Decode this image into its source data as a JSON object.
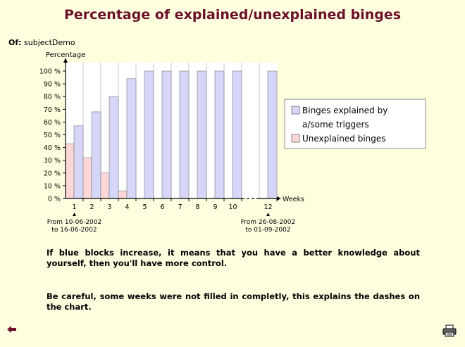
{
  "page": {
    "title": "Percentage of explained/unexplained binges",
    "subject_label": "Of:",
    "subject_value": "subjectDemo",
    "notes": [
      "If blue blocks increase, it means that you have a better knowledge about yourself, then you'll have more control.",
      "Be careful, some weeks were not filled in completly, this explains the dashes on the chart."
    ],
    "icons": {
      "back": "back-arrow-icon",
      "print": "printer-icon"
    }
  },
  "chart_data": {
    "type": "bar",
    "ylabel": "Percentage",
    "xlabel": "Weeks",
    "ylim": [
      0,
      100
    ],
    "yticks": [
      0,
      10,
      20,
      30,
      40,
      50,
      60,
      70,
      80,
      90,
      100
    ],
    "ytick_suffix": " %",
    "categories": [
      "1",
      "2",
      "3",
      "4",
      "5",
      "6",
      "7",
      "8",
      "9",
      "10",
      "12"
    ],
    "gap_after_category": "10",
    "series": [
      {
        "name": "Binges explained by a/some triggers",
        "color": "#d6d6f8",
        "values": [
          57,
          68,
          80,
          94,
          100,
          100,
          100,
          100,
          100,
          100,
          100
        ]
      },
      {
        "name": "Unexplained binges",
        "color": "#fcd7d7",
        "values": [
          43,
          32,
          20,
          6,
          0,
          0,
          0,
          0,
          0,
          0,
          0
        ]
      }
    ],
    "date_ranges": [
      {
        "category": "1",
        "line1": "From 10-06-2002",
        "line2": "to 16-06-2002"
      },
      {
        "category": "12",
        "line1": "From 26-08-2002",
        "line2": "to 01-09-2002"
      }
    ],
    "legend_placement": "right",
    "grid": "vertical",
    "plot_background": "#ffffff"
  }
}
